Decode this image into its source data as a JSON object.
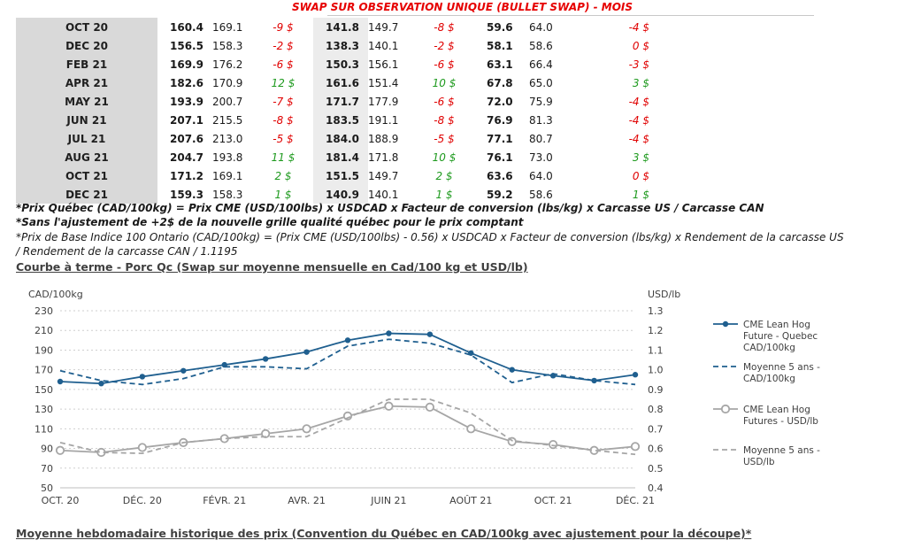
{
  "banner": {
    "title": "SWAP SUR OBSERVATION UNIQUE (BULLET SWAP) - MOIS"
  },
  "table": {
    "rows": [
      {
        "month": "OCT 20",
        "a1": "160.4",
        "a2": "169.1",
        "d1": "-9 $",
        "b1": "141.8",
        "b2": "149.7",
        "d2": "-8 $",
        "c1": "59.6",
        "c2": "64.0",
        "d3": "-4 $",
        "s1": "neg",
        "s2": "neg",
        "s3": "neg"
      },
      {
        "month": "DEC 20",
        "a1": "156.5",
        "a2": "158.3",
        "d1": "-2 $",
        "b1": "138.3",
        "b2": "140.1",
        "d2": "-2 $",
        "c1": "58.1",
        "c2": "58.6",
        "d3": "0 $",
        "s1": "neg",
        "s2": "neg",
        "s3": "neg"
      },
      {
        "month": "FEB 21",
        "a1": "169.9",
        "a2": "176.2",
        "d1": "-6 $",
        "b1": "150.3",
        "b2": "156.1",
        "d2": "-6 $",
        "c1": "63.1",
        "c2": "66.4",
        "d3": "-3 $",
        "s1": "neg",
        "s2": "neg",
        "s3": "neg"
      },
      {
        "month": "APR 21",
        "a1": "182.6",
        "a2": "170.9",
        "d1": "12 $",
        "b1": "161.6",
        "b2": "151.4",
        "d2": "10 $",
        "c1": "67.8",
        "c2": "65.0",
        "d3": "3 $",
        "s1": "pos",
        "s2": "pos",
        "s3": "pos"
      },
      {
        "month": "MAY 21",
        "a1": "193.9",
        "a2": "200.7",
        "d1": "-7 $",
        "b1": "171.7",
        "b2": "177.9",
        "d2": "-6 $",
        "c1": "72.0",
        "c2": "75.9",
        "d3": "-4 $",
        "s1": "neg",
        "s2": "neg",
        "s3": "neg"
      },
      {
        "month": "JUN 21",
        "a1": "207.1",
        "a2": "215.5",
        "d1": "-8 $",
        "b1": "183.5",
        "b2": "191.1",
        "d2": "-8 $",
        "c1": "76.9",
        "c2": "81.3",
        "d3": "-4 $",
        "s1": "neg",
        "s2": "neg",
        "s3": "neg"
      },
      {
        "month": "JUL 21",
        "a1": "207.6",
        "a2": "213.0",
        "d1": "-5 $",
        "b1": "184.0",
        "b2": "188.9",
        "d2": "-5 $",
        "c1": "77.1",
        "c2": "80.7",
        "d3": "-4 $",
        "s1": "neg",
        "s2": "neg",
        "s3": "neg"
      },
      {
        "month": "AUG 21",
        "a1": "204.7",
        "a2": "193.8",
        "d1": "11 $",
        "b1": "181.4",
        "b2": "171.8",
        "d2": "10 $",
        "c1": "76.1",
        "c2": "73.0",
        "d3": "3 $",
        "s1": "pos",
        "s2": "pos",
        "s3": "pos"
      },
      {
        "month": "OCT 21",
        "a1": "171.2",
        "a2": "169.1",
        "d1": "2 $",
        "b1": "151.5",
        "b2": "149.7",
        "d2": "2 $",
        "c1": "63.6",
        "c2": "64.0",
        "d3": "0 $",
        "s1": "pos",
        "s2": "pos",
        "s3": "neg"
      },
      {
        "month": "DEC 21",
        "a1": "159.3",
        "a2": "158.3",
        "d1": "1 $",
        "b1": "140.9",
        "b2": "140.1",
        "d2": "1 $",
        "c1": "59.2",
        "c2": "58.6",
        "d3": "1 $",
        "s1": "pos",
        "s2": "pos",
        "s3": "pos"
      }
    ]
  },
  "notes": {
    "n1": "*Prix Québec (CAD/100kg) = Prix CME (USD/100lbs) x USDCAD x Facteur de conversion (lbs/kg) x Carcasse US / Carcasse CAN",
    "n2": "*Sans l'ajustement de +2$ de la nouvelle grille qualité québec pour le prix comptant",
    "n3": "*Prix de Base Indice 100 Ontario (CAD/100kg) = (Prix CME (USD/100lbs) - 0.56) x USDCAD x Facteur de conversion (lbs/kg) x Rendement de la carcasse US",
    "n4": "/ Rendement de la carcasse CAN / 1.1195"
  },
  "section_title_1": "Courbe à terme - Porc Qc (Swap sur moyenne mensuelle en Cad/100 kg et USD/lb)",
  "section_title_2": "Moyenne hebdomadaire historique des prix (Convention du Québec en CAD/100kg avec ajustement pour la découpe)*",
  "colors": {
    "blue": "#1f5f8f",
    "gray": "#a6a6a6",
    "neg": "#e00000",
    "pos": "#1e9a1e"
  },
  "chart_data": {
    "type": "line",
    "ylabel": "CAD/100kg",
    "y2label": "USD/lb",
    "ylim": [
      50,
      230
    ],
    "y2lim": [
      0.4,
      1.3
    ],
    "yticks": [
      50,
      70,
      90,
      110,
      130,
      150,
      170,
      190,
      210,
      230
    ],
    "y2ticks": [
      "0.4",
      "0.5",
      "0.6",
      "0.7",
      "0.8",
      "0.9",
      "1.0",
      "1.1",
      "1.2",
      "1.3"
    ],
    "x": [
      "OCT. 20",
      "NOV. 20",
      "DÉC. 20",
      "JANV. 21",
      "FÉVR. 21",
      "MARS 21",
      "AVR. 21",
      "MAI 21",
      "JUIN 21",
      "JUIL. 21",
      "AOÛT 21",
      "SEPT. 21",
      "OCT. 21",
      "NOV. 21",
      "DÉC. 21"
    ],
    "xticklabels": [
      "OCT. 20",
      "DÉC. 20",
      "FÉVR. 21",
      "AVR. 21",
      "JUIN 21",
      "AOÛT 21",
      "OCT. 21",
      "DÉC. 21"
    ],
    "grid": true,
    "legend_position": "right",
    "series": [
      {
        "name": "CME Lean Hog Future - Quebec CAD/100kg",
        "axis": "left",
        "style": "solid-marker",
        "color": "#1f5f8f",
        "values": [
          158,
          156,
          163,
          169,
          175,
          181,
          188,
          200,
          207,
          206,
          187,
          170,
          164,
          159,
          165
        ]
      },
      {
        "name": "Moyenne 5 ans - CAD/100kg",
        "axis": "left",
        "style": "dashed",
        "color": "#1f5f8f",
        "values": [
          169,
          159,
          155,
          161,
          173,
          173,
          171,
          194,
          201,
          197,
          185,
          157,
          166,
          159,
          155
        ]
      },
      {
        "name": "CME Lean Hog Futures - USD/lb",
        "axis": "right",
        "style": "solid-marker",
        "color": "#a6a6a6",
        "values": [
          0.59,
          0.58,
          0.605,
          0.63,
          0.65,
          0.675,
          0.7,
          0.765,
          0.815,
          0.81,
          0.7,
          0.635,
          0.62,
          0.59,
          0.61
        ]
      },
      {
        "name": "Moyenne 5 ans - USD/lb",
        "axis": "right",
        "style": "dashed",
        "color": "#a6a6a6",
        "values": [
          0.63,
          0.58,
          0.575,
          0.63,
          0.65,
          0.66,
          0.66,
          0.755,
          0.85,
          0.85,
          0.78,
          0.64,
          0.615,
          0.59,
          0.57
        ]
      }
    ]
  }
}
